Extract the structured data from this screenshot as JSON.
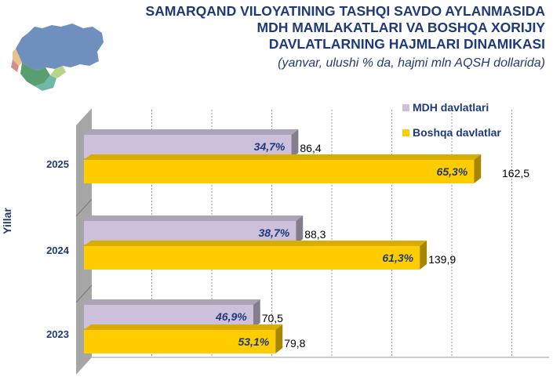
{
  "header": {
    "title_lines": [
      "SAMARQAND VILOYATINING TASHQI SAVDO AYLANMASIDA",
      "MDH MAMLAKATLARI VA BOSHQA XORIJIY",
      "DAVLATLARNING HAJMLARI DINAMIKASI"
    ],
    "subtitle": "(yanvar, ulushi % da, hajmi mln AQSH dollarida)"
  },
  "colors": {
    "mdh": "#ccc0da",
    "boshqa": "#ffcc00",
    "title": "#1f3a7a",
    "wall": "#a6a6a6"
  },
  "chart_data": {
    "type": "bar",
    "orientation": "horizontal",
    "categories": [
      "2025",
      "2024",
      "2023"
    ],
    "ylabel": "Yillar",
    "xlabel": "",
    "grid": true,
    "legend": "top-right",
    "series": [
      {
        "name": "MDH davlatlari",
        "values": [
          86.4,
          88.3,
          70.5
        ],
        "share_labels": [
          "34,7%",
          "38,7%",
          "46,9%"
        ],
        "value_labels": [
          "86,4",
          "88,3",
          "70,5"
        ]
      },
      {
        "name": "Boshqa davlatlar",
        "values": [
          162.5,
          139.9,
          79.8
        ],
        "share_labels": [
          "65,3%",
          "61,3%",
          "53,1%"
        ],
        "value_labels": [
          "162,5",
          "139,9",
          "79,8"
        ]
      }
    ]
  }
}
